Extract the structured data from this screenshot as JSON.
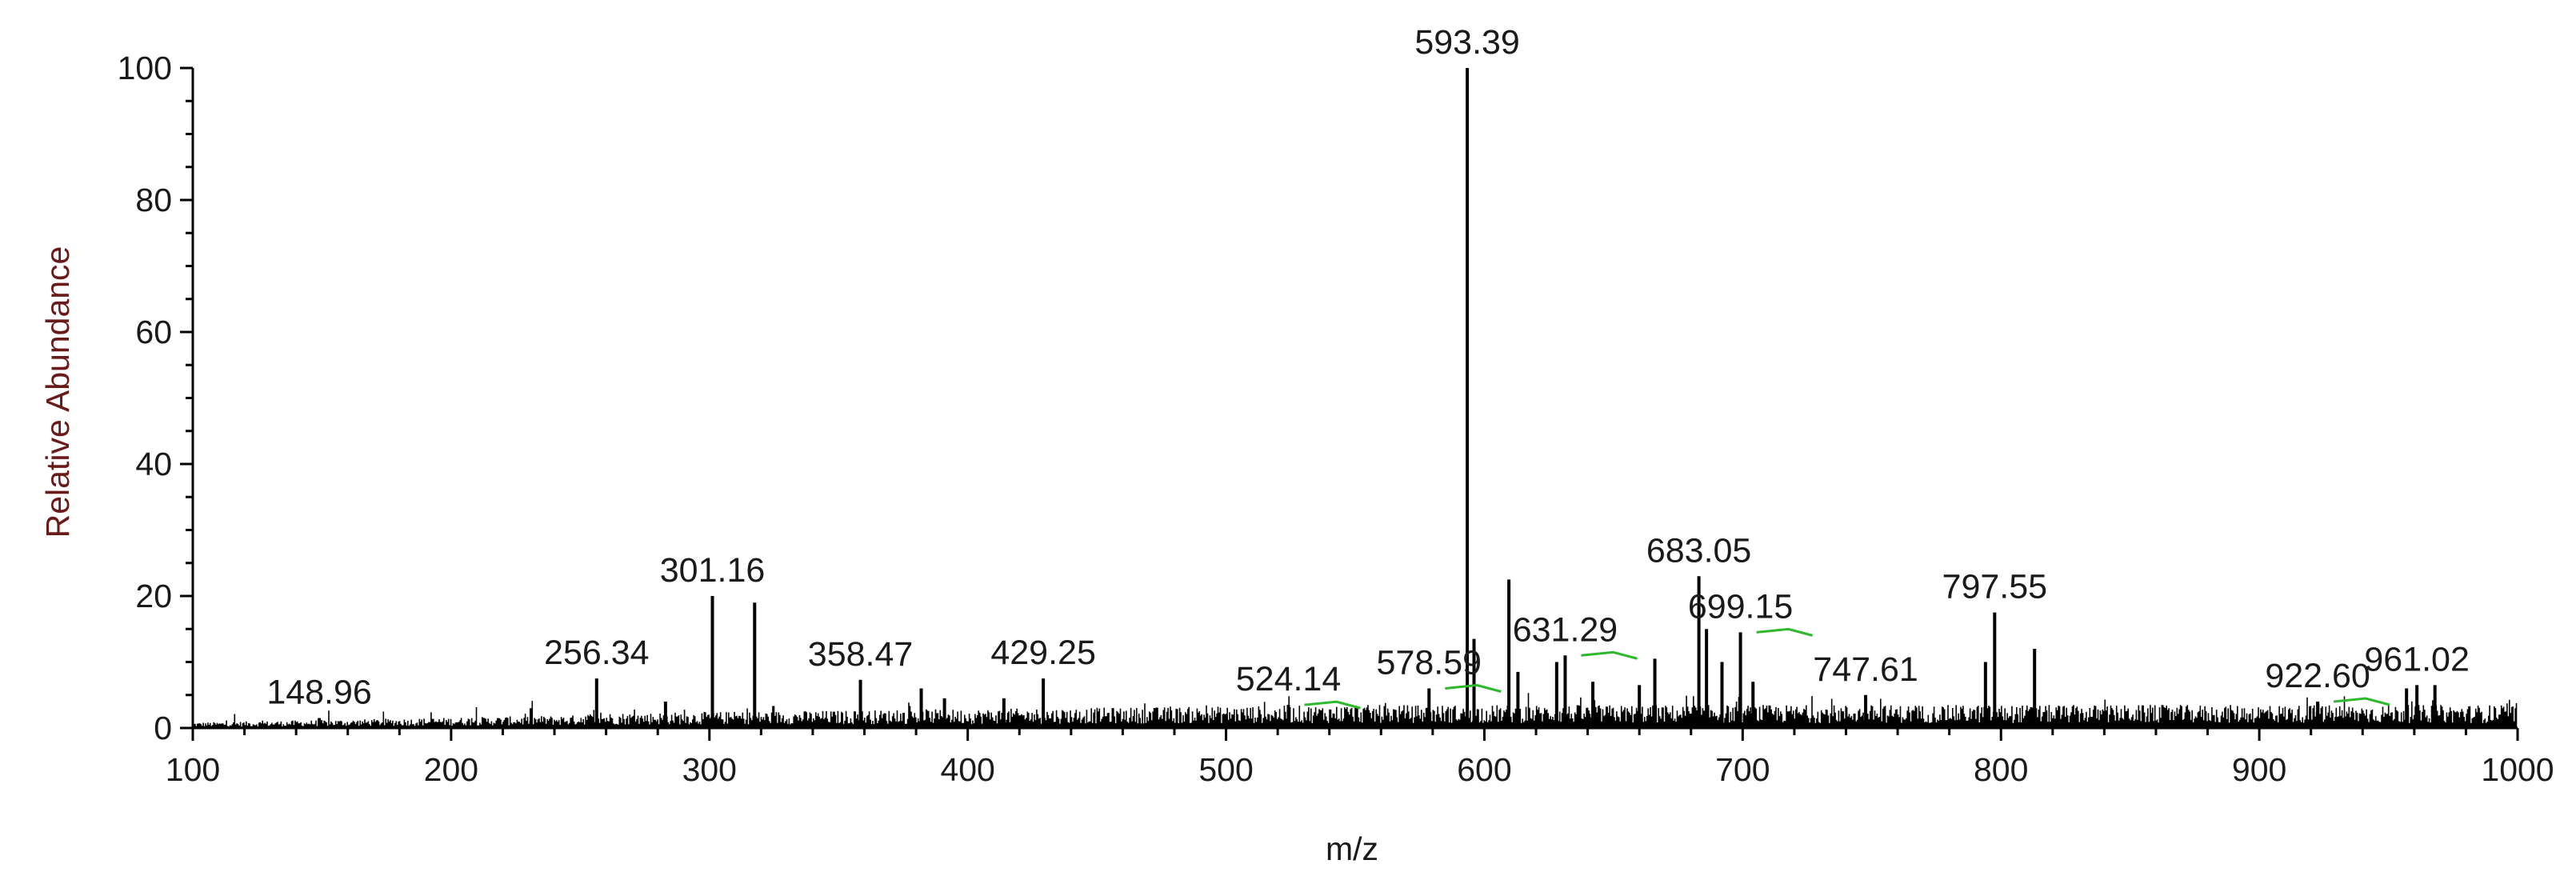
{
  "chart_data": {
    "type": "bar",
    "title": "",
    "xlabel": "m/z",
    "ylabel": "Relative Abundance",
    "xlim": [
      100,
      1000
    ],
    "ylim": [
      0,
      100
    ],
    "grid": false,
    "x_ticks": [
      100,
      200,
      300,
      400,
      500,
      600,
      700,
      800,
      900,
      1000
    ],
    "y_ticks": [
      0,
      20,
      40,
      60,
      80,
      100
    ],
    "colors": {
      "peaks": "#000000",
      "annotation_line": "#2eb82e",
      "ylabel": "#6b1a1a"
    },
    "labeled_peaks": [
      {
        "mz": 148.96,
        "abundance": 1.5,
        "label": "148.96"
      },
      {
        "mz": 256.34,
        "abundance": 7.5,
        "label": "256.34"
      },
      {
        "mz": 301.16,
        "abundance": 20.0,
        "label": "301.16"
      },
      {
        "mz": 358.47,
        "abundance": 7.3,
        "label": "358.47"
      },
      {
        "mz": 429.25,
        "abundance": 7.5,
        "label": "429.25"
      },
      {
        "mz": 524.14,
        "abundance": 3.5,
        "label": "524.14"
      },
      {
        "mz": 578.59,
        "abundance": 6.0,
        "label": "578.59"
      },
      {
        "mz": 593.39,
        "abundance": 100.0,
        "label": "593.39"
      },
      {
        "mz": 631.29,
        "abundance": 11.0,
        "label": "631.29"
      },
      {
        "mz": 683.05,
        "abundance": 23.0,
        "label": "683.05"
      },
      {
        "mz": 699.15,
        "abundance": 14.5,
        "label": "699.15"
      },
      {
        "mz": 747.61,
        "abundance": 5.0,
        "label": "747.61"
      },
      {
        "mz": 797.55,
        "abundance": 17.5,
        "label": "797.55"
      },
      {
        "mz": 922.6,
        "abundance": 4.0,
        "label": "922.60"
      },
      {
        "mz": 961.02,
        "abundance": 6.5,
        "label": "961.02"
      }
    ],
    "peaks": [
      {
        "mz": 231.0,
        "abundance": 3.0
      },
      {
        "mz": 283.0,
        "abundance": 4.0
      },
      {
        "mz": 317.5,
        "abundance": 19.0
      },
      {
        "mz": 382.0,
        "abundance": 6.0
      },
      {
        "mz": 391.0,
        "abundance": 4.5
      },
      {
        "mz": 414.0,
        "abundance": 4.5
      },
      {
        "mz": 609.5,
        "abundance": 22.5
      },
      {
        "mz": 596.0,
        "abundance": 13.5
      },
      {
        "mz": 613.0,
        "abundance": 8.5
      },
      {
        "mz": 628.0,
        "abundance": 10.0
      },
      {
        "mz": 642.0,
        "abundance": 7.0
      },
      {
        "mz": 660.0,
        "abundance": 6.5
      },
      {
        "mz": 666.0,
        "abundance": 10.5
      },
      {
        "mz": 686.0,
        "abundance": 15.0
      },
      {
        "mz": 692.0,
        "abundance": 10.0
      },
      {
        "mz": 704.0,
        "abundance": 7.0
      },
      {
        "mz": 794.0,
        "abundance": 10.0
      },
      {
        "mz": 813.0,
        "abundance": 12.0
      },
      {
        "mz": 957.0,
        "abundance": 6.0
      },
      {
        "mz": 968.0,
        "abundance": 6.5
      }
    ],
    "baseline_level": 2.5
  }
}
